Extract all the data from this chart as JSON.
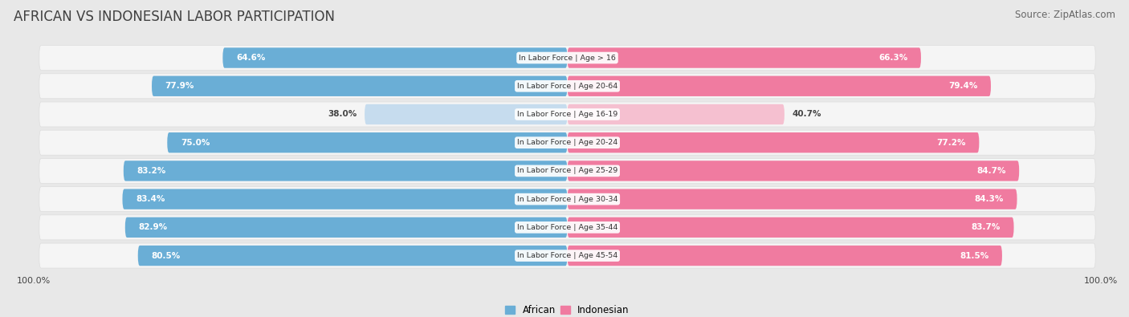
{
  "title": "AFRICAN VS INDONESIAN LABOR PARTICIPATION",
  "source": "Source: ZipAtlas.com",
  "categories": [
    "In Labor Force | Age > 16",
    "In Labor Force | Age 20-64",
    "In Labor Force | Age 16-19",
    "In Labor Force | Age 20-24",
    "In Labor Force | Age 25-29",
    "In Labor Force | Age 30-34",
    "In Labor Force | Age 35-44",
    "In Labor Force | Age 45-54"
  ],
  "african_values": [
    64.6,
    77.9,
    38.0,
    75.0,
    83.2,
    83.4,
    82.9,
    80.5
  ],
  "indonesian_values": [
    66.3,
    79.4,
    40.7,
    77.2,
    84.7,
    84.3,
    83.7,
    81.5
  ],
  "african_color": "#6AAED6",
  "african_light_color": "#C6DCEE",
  "indonesian_color": "#F07BA0",
  "indonesian_light_color": "#F5C0D0",
  "max_value": 100.0,
  "background_color": "#e8e8e8",
  "row_bg_color": "#f0f0f0",
  "title_fontsize": 12,
  "source_fontsize": 8.5,
  "value_fontsize": 7.5,
  "cat_fontsize": 6.8
}
